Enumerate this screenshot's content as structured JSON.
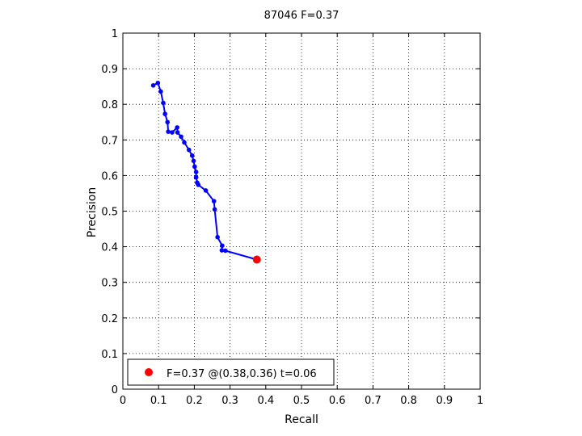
{
  "chart_data": {
    "type": "line",
    "title": "87046 F=0.37",
    "xlabel": "Recall",
    "ylabel": "Precision",
    "xlim": [
      0,
      1
    ],
    "ylim": [
      0,
      1
    ],
    "xticks": [
      "0",
      "0.1",
      "0.2",
      "0.3",
      "0.4",
      "0.5",
      "0.6",
      "0.7",
      "0.8",
      "0.9",
      "1"
    ],
    "yticks": [
      "0",
      "0.1",
      "0.2",
      "0.3",
      "0.4",
      "0.5",
      "0.6",
      "0.7",
      "0.8",
      "0.9",
      "1"
    ],
    "grid": true,
    "legend_position": "bottom-left",
    "series": [
      {
        "color": "#0000ff",
        "marker": "dot",
        "points": [
          [
            0.085,
            0.853
          ],
          [
            0.098,
            0.86
          ],
          [
            0.106,
            0.836
          ],
          [
            0.113,
            0.804
          ],
          [
            0.118,
            0.773
          ],
          [
            0.125,
            0.75
          ],
          [
            0.127,
            0.723
          ],
          [
            0.138,
            0.721
          ],
          [
            0.152,
            0.735
          ],
          [
            0.153,
            0.721
          ],
          [
            0.163,
            0.709
          ],
          [
            0.172,
            0.693
          ],
          [
            0.185,
            0.672
          ],
          [
            0.194,
            0.656
          ],
          [
            0.198,
            0.641
          ],
          [
            0.201,
            0.625
          ],
          [
            0.205,
            0.61
          ],
          [
            0.205,
            0.595
          ],
          [
            0.208,
            0.58
          ],
          [
            0.211,
            0.574
          ],
          [
            0.232,
            0.558
          ],
          [
            0.255,
            0.528
          ],
          [
            0.257,
            0.505
          ],
          [
            0.265,
            0.427
          ],
          [
            0.278,
            0.403
          ],
          [
            0.277,
            0.39
          ],
          [
            0.287,
            0.389
          ],
          [
            0.375,
            0.364
          ]
        ]
      }
    ],
    "best_point": {
      "x": 0.375,
      "y": 0.364,
      "color": "#ff0000",
      "label": "F=0.37 @(0.38,0.36) t=0.06"
    }
  }
}
